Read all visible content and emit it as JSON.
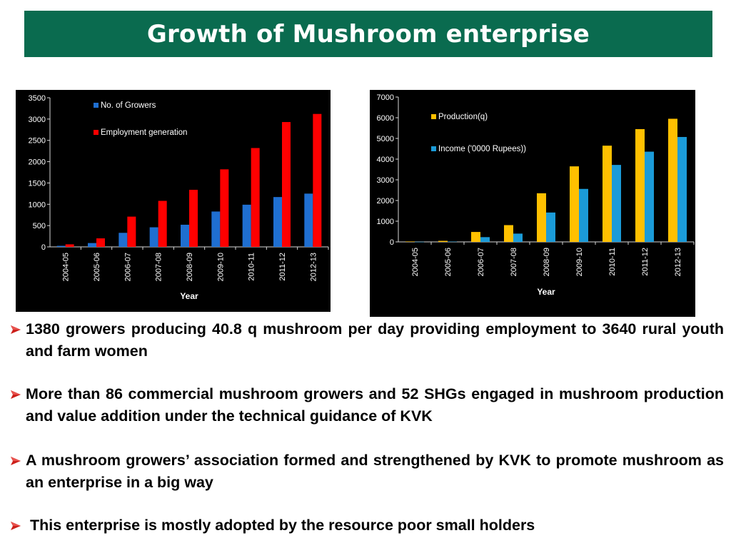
{
  "title": "Growth of Mushroom enterprise",
  "colors": {
    "title_bg": "#0a6b4f",
    "growers": "#1f6fd1",
    "employment": "#ff0000",
    "production": "#ffc000",
    "income": "#1b9bd8",
    "bullet": "#cc1f1a"
  },
  "chart_data": [
    {
      "type": "bar",
      "title": "",
      "xlabel": "Year",
      "ylabel": "",
      "ylim": [
        0,
        3500
      ],
      "yticks": [
        "0",
        "500",
        "1000",
        "1500",
        "2000",
        "2500",
        "3000",
        "3500"
      ],
      "categories": [
        "2004-05",
        "2005-06",
        "2006-07",
        "2007-08",
        "2008-09",
        "2009-10",
        "2010-11",
        "2011-12",
        "2012-13"
      ],
      "series": [
        {
          "name": "No. of Growers",
          "values": [
            25,
            90,
            330,
            460,
            520,
            830,
            990,
            1170,
            1250
          ]
        },
        {
          "name": "Employment generation",
          "values": [
            60,
            200,
            710,
            1080,
            1340,
            1820,
            2320,
            2930,
            3120
          ]
        }
      ],
      "legend": "top-left",
      "grid": false
    },
    {
      "type": "bar",
      "title": "",
      "xlabel": "Year",
      "ylabel": "",
      "ylim": [
        0,
        7000
      ],
      "yticks": [
        "0",
        "1000",
        "2000",
        "3000",
        "4000",
        "5000",
        "6000",
        "7000"
      ],
      "categories": [
        "2004-05",
        "2005-06",
        "2006-07",
        "2007-08",
        "2008-09",
        "2009-10",
        "2010-11",
        "2011-12",
        "2012-13"
      ],
      "series": [
        {
          "name": "Production(q)",
          "values": [
            20,
            50,
            480,
            810,
            2350,
            3650,
            4650,
            5450,
            5950
          ]
        },
        {
          "name": "Income ('0000 Rupees))",
          "values": [
            5,
            15,
            230,
            400,
            1420,
            2560,
            3720,
            4360,
            5070
          ]
        }
      ],
      "legend": "top-left",
      "grid": false
    }
  ],
  "bullets": [
    "1380 growers  producing 40.8 q mushroom per day providing employment  to 3640 rural youth and farm women",
    "More than  86 commercial mushroom growers and  52 SHGs engaged in mushroom production and value addition under the technical guidance of KVK",
    "A mushroom growers’ association formed and strengthened by KVK to promote mushroom as an enterprise in a big way",
    " This enterprise is mostly adopted by the resource poor small holders"
  ]
}
